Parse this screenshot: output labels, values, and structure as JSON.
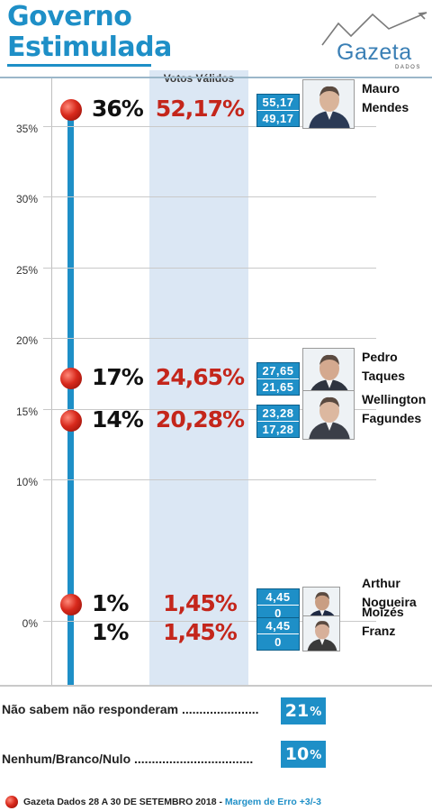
{
  "header": {
    "title_line1": "Governo",
    "title_line2": "Estimulada",
    "logo_text": "Gazeta",
    "logo_sub": "DADOS"
  },
  "band_label": "Votos Válidos",
  "colors": {
    "accent": "#1e8fc7",
    "valid_votes": "#c4261b",
    "band": "#dbe7f4"
  },
  "chart_data": {
    "type": "scatter",
    "ylabel": "",
    "ylim": [
      -3,
      37
    ],
    "y_ticks": [
      "35%",
      "30%",
      "25%",
      "20%",
      "15%",
      "10%",
      "0%"
    ],
    "y_tick_values": [
      35,
      30,
      25,
      20,
      15,
      10,
      0
    ],
    "series": [
      {
        "name": "Mauro Mendes",
        "name_lines": [
          "Mauro",
          "Mendes"
        ],
        "value": 36,
        "label": "36%",
        "valid_votes": "52,17%",
        "margin_high": "55,17",
        "margin_low": "49,17"
      },
      {
        "name": "Pedro Taques",
        "name_lines": [
          "Pedro",
          "Taques"
        ],
        "value": 17,
        "label": "17%",
        "valid_votes": "24,65%",
        "margin_high": "27,65",
        "margin_low": "21,65"
      },
      {
        "name": "Wellington Fagundes",
        "name_lines": [
          "Wellington",
          "Fagundes"
        ],
        "value": 14,
        "label": "14%",
        "valid_votes": "20,28%",
        "margin_high": "23,28",
        "margin_low": "17,28"
      },
      {
        "name": "Arthur Nogueira",
        "name_lines": [
          "Arthur",
          "Nogueira"
        ],
        "value": 1,
        "label": "1%",
        "valid_votes": "1,45%",
        "margin_high": "4,45",
        "margin_low": "0"
      },
      {
        "name": "Moizés Franz",
        "name_lines": [
          "Moizés",
          "Franz"
        ],
        "value": 1,
        "label": "1%",
        "valid_votes": "1,45%",
        "margin_high": "4,45",
        "margin_low": "0"
      }
    ]
  },
  "stats": [
    {
      "label": "Não sabem não responderam ......................",
      "value": "21",
      "symbol": "%"
    },
    {
      "label": "Nenhum/Branco/Nulo ..................................",
      "value": "10",
      "symbol": "%"
    }
  ],
  "footer": {
    "source": "Gazeta Dados 28 A 30 DE SETEMBRO 2018 - ",
    "margin": "Margem de Erro +3/-3"
  }
}
